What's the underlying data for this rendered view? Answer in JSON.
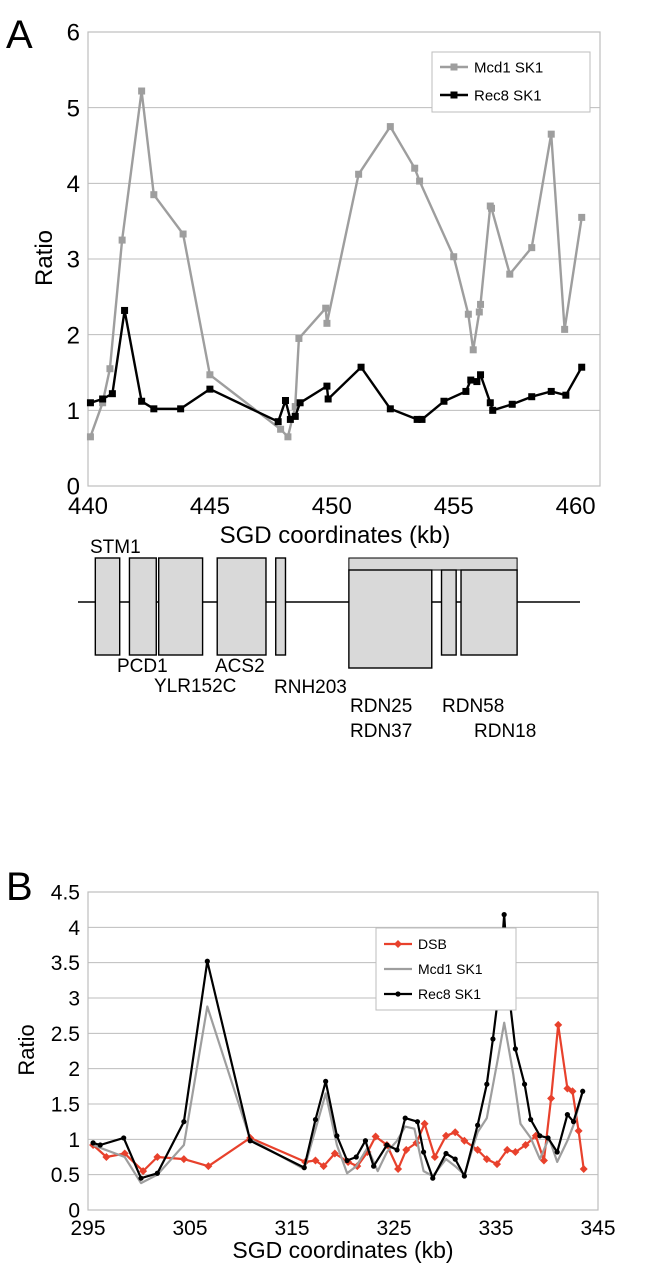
{
  "chart_data": [
    {
      "panel": "A",
      "type": "line",
      "xlabel": "SGD coordinates (kb)",
      "ylabel": "Ratio",
      "xlim": [
        440,
        461
      ],
      "ylim": [
        0,
        6
      ],
      "xticks": [
        440,
        445,
        450,
        455,
        460
      ],
      "yticks": [
        0,
        1,
        2,
        3,
        4,
        5,
        6
      ],
      "grid": "horizontal",
      "legend_position": "top-right",
      "series": [
        {
          "name": "Mcd1 SK1",
          "color": "#9e9e9e",
          "marker": "square",
          "points": [
            [
              440.1,
              0.65
            ],
            [
              440.6,
              1.1
            ],
            [
              440.9,
              1.55
            ],
            [
              441.4,
              3.25
            ],
            [
              442.2,
              5.22
            ],
            [
              442.7,
              3.85
            ],
            [
              443.9,
              3.33
            ],
            [
              445.0,
              1.47
            ],
            [
              447.9,
              0.75
            ],
            [
              448.2,
              0.65
            ],
            [
              448.5,
              1.05
            ],
            [
              448.65,
              1.95
            ],
            [
              449.75,
              2.35
            ],
            [
              449.8,
              2.15
            ],
            [
              451.1,
              4.12
            ],
            [
              452.4,
              4.75
            ],
            [
              453.4,
              4.2
            ],
            [
              453.6,
              4.03
            ],
            [
              455.0,
              3.03
            ],
            [
              455.6,
              2.27
            ],
            [
              455.8,
              1.8
            ],
            [
              456.05,
              2.3
            ],
            [
              456.1,
              2.4
            ],
            [
              456.5,
              3.7
            ],
            [
              456.55,
              3.67
            ],
            [
              457.3,
              2.8
            ],
            [
              458.2,
              3.15
            ],
            [
              459.0,
              4.65
            ],
            [
              459.55,
              2.07
            ],
            [
              460.25,
              3.55
            ]
          ]
        },
        {
          "name": "Rec8 SK1",
          "color": "#000000",
          "marker": "square",
          "points": [
            [
              440.1,
              1.1
            ],
            [
              440.6,
              1.15
            ],
            [
              441.0,
              1.22
            ],
            [
              441.5,
              2.32
            ],
            [
              442.2,
              1.12
            ],
            [
              442.7,
              1.02
            ],
            [
              443.8,
              1.02
            ],
            [
              445.0,
              1.28
            ],
            [
              447.8,
              0.85
            ],
            [
              448.1,
              1.13
            ],
            [
              448.3,
              0.88
            ],
            [
              448.5,
              0.92
            ],
            [
              448.7,
              1.1
            ],
            [
              449.8,
              1.32
            ],
            [
              449.85,
              1.15
            ],
            [
              451.2,
              1.57
            ],
            [
              452.4,
              1.02
            ],
            [
              453.5,
              0.88
            ],
            [
              453.7,
              0.88
            ],
            [
              454.6,
              1.12
            ],
            [
              455.5,
              1.25
            ],
            [
              455.7,
              1.4
            ],
            [
              455.95,
              1.38
            ],
            [
              456.1,
              1.47
            ],
            [
              456.5,
              1.1
            ],
            [
              456.6,
              1.0
            ],
            [
              457.4,
              1.08
            ],
            [
              458.2,
              1.18
            ],
            [
              459.0,
              1.25
            ],
            [
              459.6,
              1.2
            ],
            [
              460.25,
              1.57
            ]
          ]
        }
      ],
      "gene_map": {
        "features": [
          {
            "name": "STM1",
            "start": 440.3,
            "end": 441.3
          },
          {
            "name": "PCD1",
            "start": 441.7,
            "end": 442.8
          },
          {
            "name": "YLR152C",
            "start": 442.9,
            "end": 444.7
          },
          {
            "name": "ACS2",
            "start": 445.3,
            "end": 447.3
          },
          {
            "name": "RNH203",
            "start": 447.7,
            "end": 448.1
          },
          {
            "name": "RDN25",
            "start": 450.7,
            "end": 454.1
          },
          {
            "name": "RDN37",
            "start": 450.7,
            "end": 457.6
          },
          {
            "name": "RDN58",
            "start": 454.5,
            "end": 455.1
          },
          {
            "name": "RDN18",
            "start": 455.3,
            "end": 457.6
          }
        ]
      }
    },
    {
      "panel": "B",
      "type": "line",
      "xlabel": "SGD coordinates (kb)",
      "ylabel": "Ratio",
      "xlim": [
        295,
        345
      ],
      "ylim": [
        0,
        4.5
      ],
      "xticks": [
        295,
        305,
        315,
        325,
        335,
        345
      ],
      "yticks": [
        0,
        0.5,
        1,
        1.5,
        2,
        2.5,
        3,
        3.5,
        4,
        4.5
      ],
      "grid": "horizontal",
      "legend_position": "top-right",
      "series": [
        {
          "name": "DSB",
          "color": "#e8412c",
          "marker": "diamond",
          "points": [
            [
              295.5,
              0.92
            ],
            [
              296.8,
              0.75
            ],
            [
              298.6,
              0.8
            ],
            [
              300.4,
              0.55
            ],
            [
              301.8,
              0.75
            ],
            [
              304.4,
              0.72
            ],
            [
              306.8,
              0.62
            ],
            [
              310.9,
              1.02
            ],
            [
              316.3,
              0.68
            ],
            [
              317.3,
              0.7
            ],
            [
              318.1,
              0.62
            ],
            [
              319.2,
              0.8
            ],
            [
              320.5,
              0.68
            ],
            [
              321.4,
              0.62
            ],
            [
              322.4,
              0.82
            ],
            [
              323.2,
              1.04
            ],
            [
              324.3,
              0.92
            ],
            [
              325.4,
              0.58
            ],
            [
              326.2,
              0.85
            ],
            [
              327.2,
              0.95
            ],
            [
              328.0,
              1.22
            ],
            [
              329.0,
              0.75
            ],
            [
              330.1,
              1.05
            ],
            [
              331.0,
              1.1
            ],
            [
              331.9,
              0.98
            ],
            [
              333.2,
              0.85
            ],
            [
              334.1,
              0.72
            ],
            [
              335.1,
              0.65
            ],
            [
              336.1,
              0.85
            ],
            [
              336.9,
              0.82
            ],
            [
              337.9,
              0.92
            ],
            [
              338.9,
              1.05
            ],
            [
              339.7,
              0.7
            ],
            [
              340.4,
              1.58
            ],
            [
              341.1,
              2.62
            ],
            [
              342.0,
              1.72
            ],
            [
              342.5,
              1.68
            ],
            [
              343.1,
              1.12
            ],
            [
              343.6,
              0.58
            ]
          ]
        },
        {
          "name": "Mcd1 SK1",
          "color": "#9e9e9e",
          "marker": "none",
          "points": [
            [
              295.5,
              0.92
            ],
            [
              296.2,
              0.88
            ],
            [
              298.6,
              0.75
            ],
            [
              300.2,
              0.38
            ],
            [
              301.8,
              0.5
            ],
            [
              304.4,
              0.92
            ],
            [
              306.7,
              2.88
            ],
            [
              310.9,
              1.0
            ],
            [
              316.2,
              0.58
            ],
            [
              318.3,
              1.65
            ],
            [
              319.4,
              0.92
            ],
            [
              320.4,
              0.52
            ],
            [
              321.3,
              0.62
            ],
            [
              322.4,
              0.88
            ],
            [
              323.4,
              0.55
            ],
            [
              324.3,
              0.82
            ],
            [
              325.3,
              0.98
            ],
            [
              326.1,
              1.18
            ],
            [
              327.0,
              1.15
            ],
            [
              327.9,
              0.55
            ],
            [
              328.8,
              0.48
            ],
            [
              330.1,
              0.72
            ],
            [
              331.0,
              0.62
            ],
            [
              331.9,
              0.5
            ],
            [
              333.2,
              1.1
            ],
            [
              334.1,
              1.3
            ],
            [
              335.2,
              2.15
            ],
            [
              335.8,
              2.65
            ],
            [
              336.7,
              1.92
            ],
            [
              337.4,
              1.22
            ],
            [
              338.4,
              1.02
            ],
            [
              339.3,
              0.72
            ],
            [
              340.2,
              1.02
            ],
            [
              341.0,
              0.68
            ],
            [
              342.0,
              0.98
            ],
            [
              342.6,
              1.2
            ],
            [
              343.5,
              1.68
            ]
          ]
        },
        {
          "name": "Rec8 SK1",
          "color": "#000000",
          "marker": "dot",
          "points": [
            [
              295.5,
              0.95
            ],
            [
              296.2,
              0.92
            ],
            [
              298.5,
              1.02
            ],
            [
              300.2,
              0.45
            ],
            [
              301.8,
              0.52
            ],
            [
              304.4,
              1.25
            ],
            [
              306.7,
              3.52
            ],
            [
              310.9,
              0.98
            ],
            [
              316.2,
              0.6
            ],
            [
              317.3,
              1.28
            ],
            [
              318.3,
              1.82
            ],
            [
              319.4,
              1.05
            ],
            [
              320.4,
              0.7
            ],
            [
              321.3,
              0.75
            ],
            [
              322.2,
              0.98
            ],
            [
              323.0,
              0.62
            ],
            [
              324.3,
              0.92
            ],
            [
              325.3,
              0.85
            ],
            [
              326.1,
              1.3
            ],
            [
              327.3,
              1.25
            ],
            [
              327.9,
              0.82
            ],
            [
              328.8,
              0.45
            ],
            [
              330.1,
              0.8
            ],
            [
              331.0,
              0.72
            ],
            [
              331.9,
              0.48
            ],
            [
              333.2,
              1.2
            ],
            [
              334.1,
              1.78
            ],
            [
              334.7,
              2.42
            ],
            [
              335.2,
              3.0
            ],
            [
              335.8,
              4.18
            ],
            [
              336.3,
              3.02
            ],
            [
              336.9,
              2.28
            ],
            [
              337.8,
              1.78
            ],
            [
              338.4,
              1.28
            ],
            [
              339.3,
              1.05
            ],
            [
              340.1,
              1.02
            ],
            [
              341.0,
              0.82
            ],
            [
              342.0,
              1.35
            ],
            [
              342.6,
              1.25
            ],
            [
              343.5,
              1.68
            ]
          ]
        }
      ]
    }
  ],
  "panels": {
    "a_letter": "A",
    "b_letter": "B"
  }
}
